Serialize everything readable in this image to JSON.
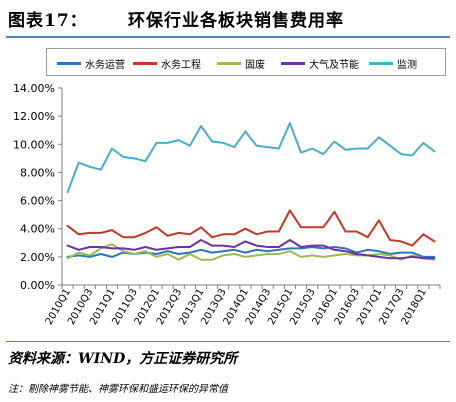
{
  "header": {
    "label": "图表17：",
    "title": "环保行业各板块销售费用率"
  },
  "footer": {
    "source": "资料来源：WIND，方正证券研究所",
    "note": "注：剔除神雾节能、神雾环保和盛运环保的异常值"
  },
  "chart_data": {
    "type": "line",
    "title": "",
    "xlabel": "",
    "ylabel": "",
    "ylim": [
      0,
      14
    ],
    "y_ticks": [
      "0.00%",
      "2.00%",
      "4.00%",
      "6.00%",
      "8.00%",
      "10.00%",
      "12.00%",
      "14.00%"
    ],
    "y_tick_values": [
      0,
      2,
      4,
      6,
      8,
      10,
      12,
      14
    ],
    "grid": false,
    "legend_position": "top",
    "x": [
      "2010Q1",
      "2010Q2",
      "2010Q3",
      "2010Q4",
      "2011Q1",
      "2011Q2",
      "2011Q3",
      "2011Q4",
      "2012Q1",
      "2012Q2",
      "2012Q3",
      "2012Q4",
      "2013Q1",
      "2013Q2",
      "2013Q3",
      "2013Q4",
      "2014Q1",
      "2014Q2",
      "2014Q3",
      "2014Q4",
      "2015Q1",
      "2015Q2",
      "2015Q3",
      "2015Q4",
      "2016Q1",
      "2016Q2",
      "2016Q3",
      "2016Q4",
      "2017Q1",
      "2017Q2",
      "2017Q3",
      "2017Q4",
      "2018Q1",
      "2018Q2"
    ],
    "x_tick_labels": [
      "2010Q1",
      "2010Q3",
      "2011Q1",
      "2011Q3",
      "2012Q1",
      "2012Q3",
      "2013Q1",
      "2013Q3",
      "2014Q1",
      "2014Q3",
      "2015Q1",
      "2015Q3",
      "2016Q1",
      "2016Q3",
      "2017Q1",
      "2017Q3",
      "2018Q1"
    ],
    "series": [
      {
        "name": "水务运营",
        "color": "#2e75b6",
        "values": [
          2.0,
          2.1,
          2.0,
          2.2,
          2.0,
          2.3,
          2.2,
          2.3,
          2.2,
          2.4,
          2.2,
          2.3,
          2.5,
          2.3,
          2.4,
          2.5,
          2.3,
          2.5,
          2.4,
          2.5,
          2.6,
          2.6,
          2.7,
          2.6,
          2.7,
          2.6,
          2.3,
          2.5,
          2.4,
          2.2,
          2.3,
          2.3,
          2.0,
          2.0
        ]
      },
      {
        "name": "水务工程",
        "color": "#c0392b",
        "values": [
          4.2,
          3.6,
          3.7,
          3.7,
          3.9,
          3.4,
          3.4,
          3.7,
          4.1,
          3.5,
          3.7,
          3.6,
          4.1,
          3.4,
          3.6,
          3.6,
          4.0,
          3.6,
          3.8,
          3.8,
          5.3,
          4.1,
          4.1,
          4.1,
          5.2,
          3.8,
          3.8,
          3.4,
          4.6,
          3.2,
          3.1,
          2.8,
          3.6,
          3.1
        ]
      },
      {
        "name": "固废",
        "color": "#9bbb59",
        "values": [
          1.9,
          2.3,
          2.1,
          2.6,
          2.9,
          2.4,
          2.2,
          2.4,
          2.0,
          2.2,
          1.8,
          2.2,
          1.8,
          1.8,
          2.1,
          2.2,
          2.0,
          2.1,
          2.2,
          2.2,
          2.4,
          2.0,
          2.1,
          2.0,
          2.1,
          2.2,
          2.1,
          2.1,
          2.2,
          2.1,
          1.8,
          2.1,
          1.9,
          1.8
        ]
      },
      {
        "name": "大气及节能",
        "color": "#7030a0",
        "values": [
          2.8,
          2.5,
          2.7,
          2.7,
          2.6,
          2.6,
          2.5,
          2.7,
          2.5,
          2.6,
          2.7,
          2.7,
          3.2,
          2.8,
          2.8,
          2.7,
          3.1,
          2.8,
          2.7,
          2.7,
          3.2,
          2.7,
          2.8,
          2.8,
          2.5,
          2.4,
          2.2,
          2.1,
          2.0,
          1.9,
          1.9,
          2.0,
          1.9,
          1.9
        ]
      },
      {
        "name": "监测",
        "color": "#4bacc6",
        "values": [
          6.6,
          8.7,
          8.4,
          8.2,
          9.7,
          9.1,
          9.0,
          8.8,
          10.1,
          10.1,
          10.3,
          9.9,
          11.3,
          10.2,
          10.1,
          9.8,
          10.9,
          9.9,
          9.8,
          9.7,
          11.5,
          9.4,
          9.7,
          9.3,
          10.2,
          9.6,
          9.7,
          9.7,
          10.5,
          9.9,
          9.3,
          9.2,
          10.1,
          9.5
        ]
      }
    ]
  }
}
